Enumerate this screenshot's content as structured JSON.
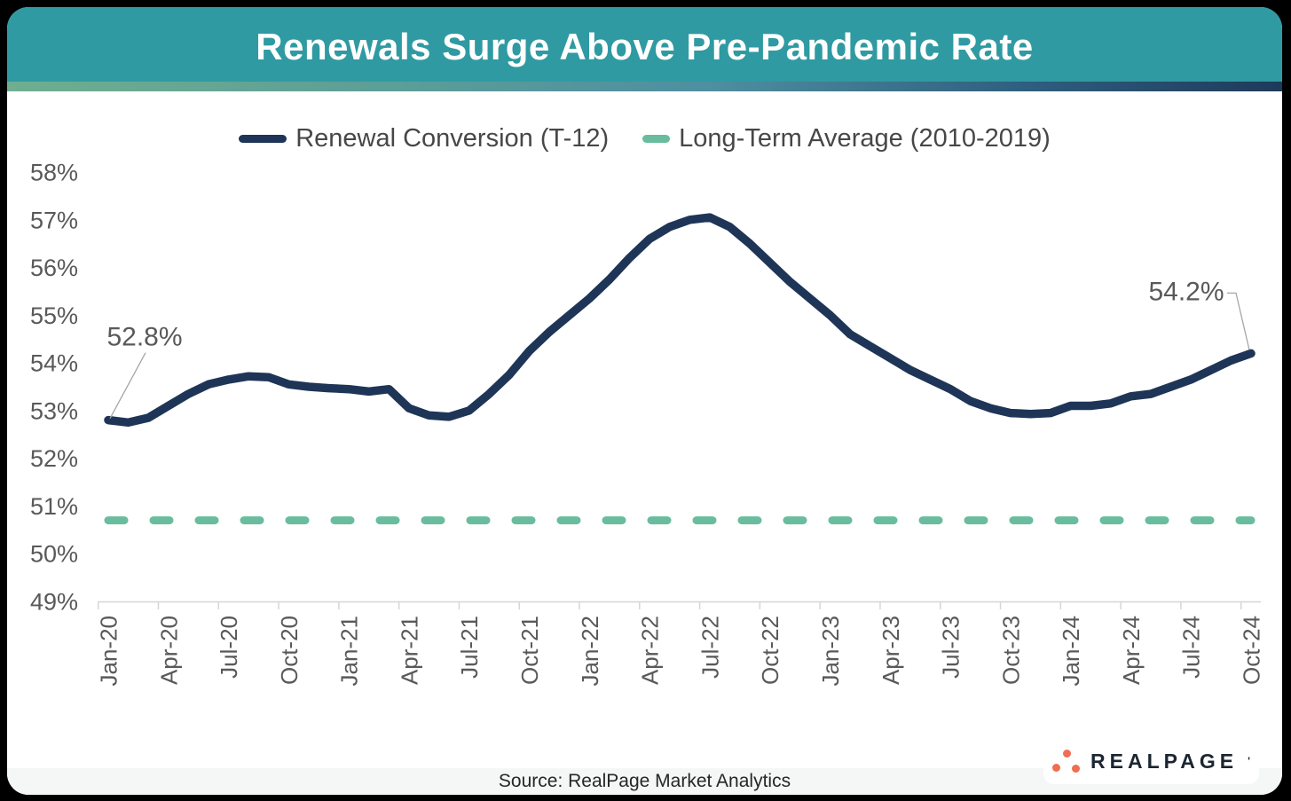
{
  "page": {
    "background": "#000000"
  },
  "header": {
    "title": "Renewals Surge Above Pre-Pandemic Rate",
    "background": "#2F9AA2",
    "stripe_colors": [
      "#6FAE8F",
      "#4E8FA0",
      "#1E3A5A"
    ]
  },
  "legend": {
    "items": [
      {
        "label": "Renewal Conversion (T-12)",
        "color": "#1E3557",
        "style": "solid"
      },
      {
        "label": "Long-Term Average (2010-2019)",
        "color": "#69BD9E",
        "style": "dashed"
      }
    ]
  },
  "annotations": {
    "first_point_label": "52.8%",
    "last_point_label": "54.2%"
  },
  "footer": {
    "source": "Source: RealPage Market Analytics"
  },
  "logo": {
    "name": "RealPage",
    "text": "REALPAGE",
    "mark": "'",
    "dot_color": "#F06D51",
    "text_color": "#1B2632"
  },
  "colors": {
    "renewal_line": "#1E3557",
    "average_line": "#69BD9E",
    "axis_text": "#595959",
    "axis_line": "#D6D6D6",
    "leader_line": "#A6A6A6",
    "annotation_text": "#595959"
  },
  "chart_data": {
    "type": "line",
    "x": [
      "Jan-20",
      "Feb-20",
      "Mar-20",
      "Apr-20",
      "May-20",
      "Jun-20",
      "Jul-20",
      "Aug-20",
      "Sep-20",
      "Oct-20",
      "Nov-20",
      "Dec-20",
      "Jan-21",
      "Feb-21",
      "Mar-21",
      "Apr-21",
      "May-21",
      "Jun-21",
      "Jul-21",
      "Aug-21",
      "Sep-21",
      "Oct-21",
      "Nov-21",
      "Dec-21",
      "Jan-22",
      "Feb-22",
      "Mar-22",
      "Apr-22",
      "May-22",
      "Jun-22",
      "Jul-22",
      "Aug-22",
      "Sep-22",
      "Oct-22",
      "Nov-22",
      "Dec-22",
      "Jan-23",
      "Feb-23",
      "Mar-23",
      "Apr-23",
      "May-23",
      "Jun-23",
      "Jul-23",
      "Aug-23",
      "Sep-23",
      "Oct-23",
      "Nov-23",
      "Dec-23",
      "Jan-24",
      "Feb-24",
      "Mar-24",
      "Apr-24",
      "May-24",
      "Jun-24",
      "Jul-24",
      "Aug-24",
      "Sep-24",
      "Oct-24"
    ],
    "x_axis_tick_every": 3,
    "series": [
      {
        "name": "Renewal Conversion (T-12)",
        "color": "#1E3557",
        "style": "solid",
        "values": [
          52.8,
          52.75,
          52.85,
          53.1,
          53.35,
          53.55,
          53.65,
          53.72,
          53.7,
          53.55,
          53.5,
          53.47,
          53.45,
          53.4,
          53.45,
          53.05,
          52.9,
          52.87,
          53.0,
          53.35,
          53.75,
          54.25,
          54.65,
          55.0,
          55.35,
          55.75,
          56.2,
          56.6,
          56.85,
          57.0,
          57.05,
          56.85,
          56.5,
          56.1,
          55.7,
          55.35,
          55.0,
          54.6,
          54.35,
          54.1,
          53.85,
          53.65,
          53.45,
          53.2,
          53.05,
          52.95,
          52.93,
          52.95,
          53.1,
          53.1,
          53.15,
          53.3,
          53.35,
          53.5,
          53.65,
          53.85,
          54.05,
          54.2
        ]
      },
      {
        "name": "Long-Term Average (2010-2019)",
        "color": "#69BD9E",
        "style": "dashed",
        "constant_value": 50.7
      }
    ],
    "ylim": [
      49,
      58
    ],
    "y_tick_labels": [
      "58%",
      "57%",
      "56%",
      "55%",
      "54%",
      "53%",
      "52%",
      "51%",
      "50%",
      "49%"
    ],
    "grid": "none",
    "legend_position": "top",
    "first_point_label": "52.8%",
    "last_point_label": "54.2%"
  }
}
